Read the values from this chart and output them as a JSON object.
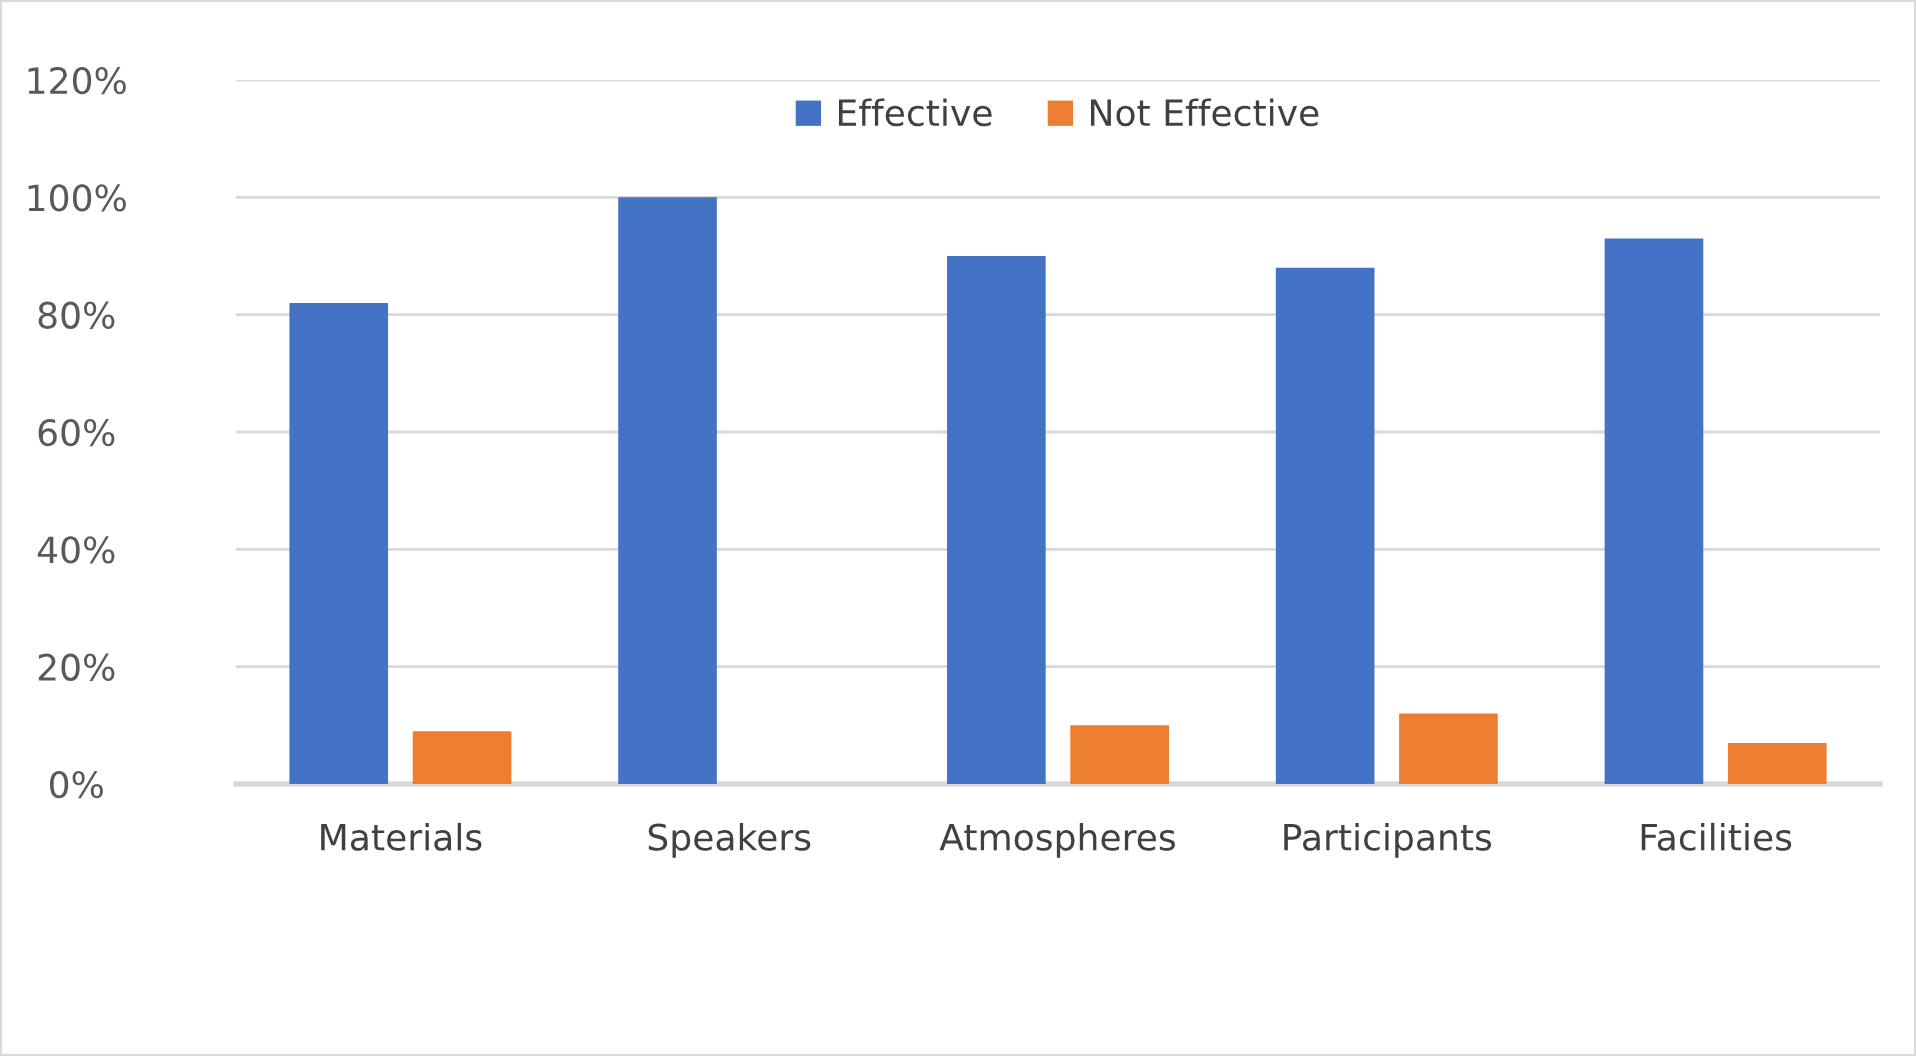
{
  "chart_data": {
    "type": "bar",
    "categories": [
      "Materials",
      "Speakers",
      "Atmospheres",
      "Participants",
      "Facilities"
    ],
    "series": [
      {
        "name": "Effective",
        "color": "#4472c4",
        "values": [
          82,
          100,
          90,
          88,
          93
        ]
      },
      {
        "name": "Not Effective",
        "color": "#ed7d31",
        "values": [
          9,
          0,
          10,
          12,
          7
        ]
      }
    ],
    "ylim": [
      0,
      120
    ],
    "yticks": [
      {
        "value": 0,
        "label": "0%"
      },
      {
        "value": 20,
        "label": "20%"
      },
      {
        "value": 40,
        "label": "40%"
      },
      {
        "value": 60,
        "label": "60%"
      },
      {
        "value": 80,
        "label": "80%"
      },
      {
        "value": 100,
        "label": "100%"
      },
      {
        "value": 120,
        "label": "120%"
      }
    ],
    "grid": "y",
    "legend": "top"
  }
}
